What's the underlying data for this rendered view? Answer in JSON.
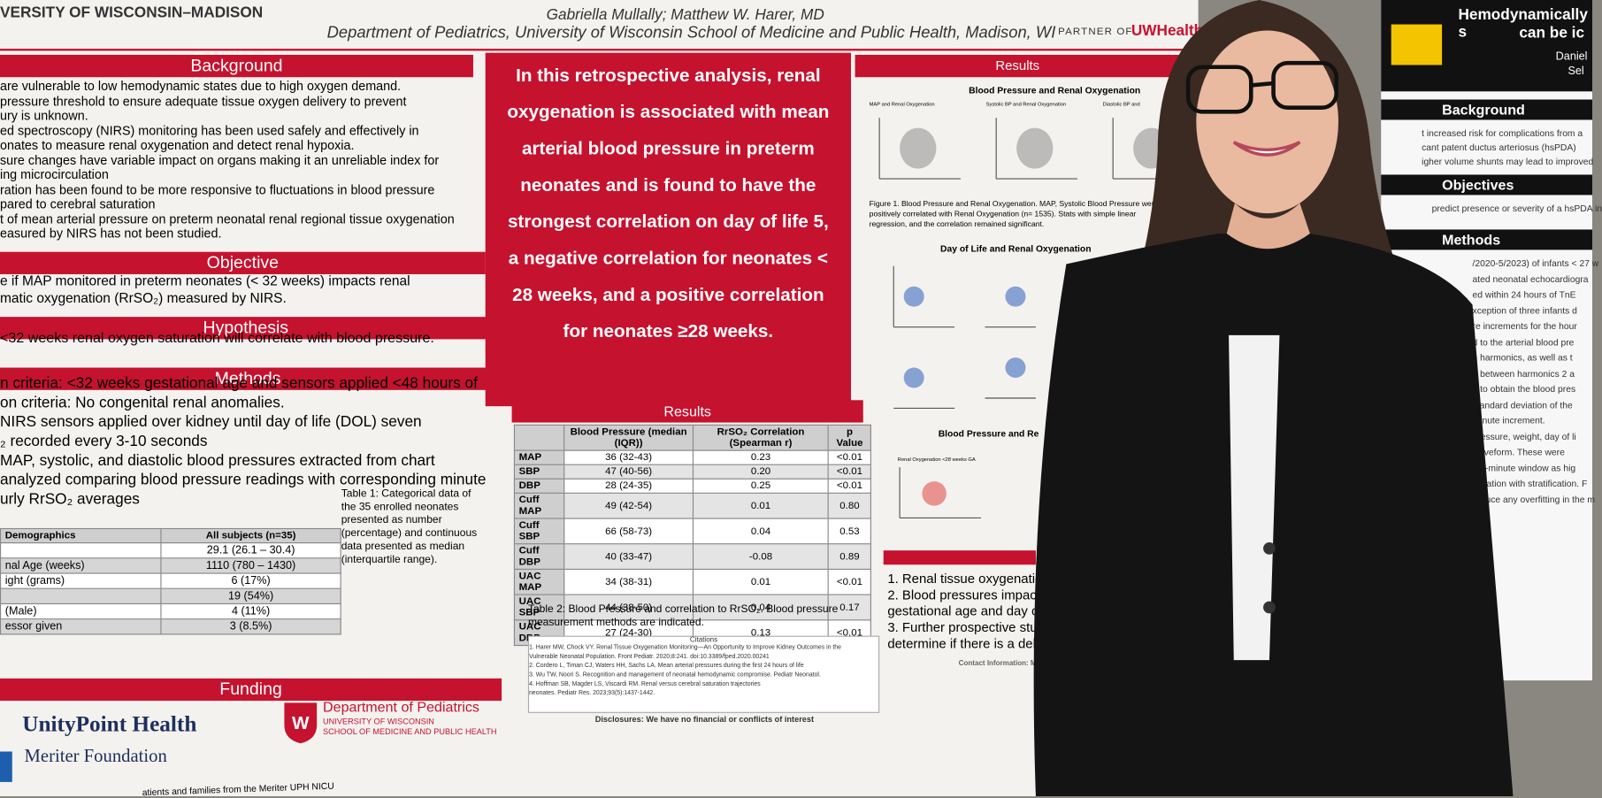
{
  "header": {
    "university": "VERSITY OF WISCONSIN–MADISON",
    "authors": "Gabriella Mullally; Matthew W. Harer, MD",
    "department": "Department of Pediatrics, University of Wisconsin School of Medicine and Public Health, Madison, WI",
    "partner": "PARTNER OF",
    "partner_logo": "UWHealth"
  },
  "background": {
    "heading": "Background",
    "lines": [
      "are vulnerable to low hemodynamic states due to high oxygen demand.",
      "pressure threshold to ensure adequate tissue oxygen delivery to prevent",
      "ury is unknown.",
      "ed spectroscopy (NIRS) monitoring has been used safely and effectively in",
      "onates to measure renal oxygenation and detect renal hypoxia.",
      "sure changes have variable impact on organs making it an unreliable index for",
      "ing microcirculation",
      "ration has been found to be more responsive to fluctuations in blood pressure",
      "pared to cerebral saturation",
      "t of mean arterial pressure on preterm neonatal renal regional tissue oxygenation",
      "easured by NIRS has not been studied."
    ]
  },
  "objective": {
    "heading": "Objective",
    "lines": [
      "e if MAP monitored in preterm neonates (< 32 weeks) impacts renal",
      "matic oxygenation (RrSO₂) measured by NIRS."
    ]
  },
  "hypothesis": {
    "heading": "Hypothesis",
    "lines": [
      "<32 weeks renal oxygen saturation will correlate with blood pressure."
    ]
  },
  "methods": {
    "heading": "Methods",
    "lines": [
      "n criteria: <32 weeks gestational age and sensors applied <48 hours of",
      "on criteria: No congenital renal anomalies.",
      "NIRS sensors applied over kidney until day of life (DOL) seven",
      "₂ recorded every 3-10 seconds",
      "MAP, systolic, and diastolic blood pressures extracted from chart",
      "analyzed comparing blood pressure readings with corresponding minute",
      "urly RrSO₂ averages"
    ]
  },
  "table1": {
    "columns": [
      "Demographics",
      "All subjects (n=35)"
    ],
    "rows": [
      {
        "value": "29.1 (26.1 – 30.4)"
      },
      {
        "label": "nal Age (weeks)",
        "value": "1110 (780 – 1430)"
      },
      {
        "label": "ight (grams)",
        "value": "6 (17%)"
      },
      {
        "value": "19 (54%)"
      },
      {
        "label": "(Male)",
        "value": "4 (11%)"
      },
      {
        "label": "essor given",
        "value": "3 (8.5%)"
      }
    ],
    "caption": "Table 1: Categorical data of the 35 enrolled neonates presented as number (percentage) and continuous data presented as median (interquartile range)."
  },
  "funding": {
    "heading": "Funding",
    "sponsor": "UnityPoint Health",
    "sponsor_sub": "Meriter Foundation",
    "dept": "Department of Pediatrics",
    "dept_sub1": "UNIVERSITY OF WISCONSIN",
    "dept_sub2": "SCHOOL OF MEDICINE AND PUBLIC HEALTH",
    "thanks": "atients and families from the Meriter UPH NICU"
  },
  "highlight": "In this retrospective analysis, renal oxygenation is associated with mean arterial blood pressure in preterm neonates and is found to have the strongest correlation on day of life 5, a negative correlation for neonates < 28 weeks, and a positive correlation for neonates ≥28 weeks.",
  "results_table": {
    "heading": "Results",
    "columns": [
      "Blood Pressure (median (IQR))",
      "RrSO₂ Correlation (Spearman r)",
      "p Value"
    ],
    "rows": [
      [
        "MAP",
        "36 (32-43)",
        "0.23",
        "<0.01"
      ],
      [
        "SBP",
        "47 (40-56)",
        "0.20",
        "<0.01"
      ],
      [
        "DBP",
        "28 (24-35)",
        "0.25",
        "<0.01"
      ],
      [
        "Cuff MAP",
        "49 (42-54)",
        "0.01",
        "0.80"
      ],
      [
        "Cuff SBP",
        "66 (58-73)",
        "0.04",
        "0.53"
      ],
      [
        "Cuff DBP",
        "40 (33-47)",
        "-0.08",
        "0.89"
      ],
      [
        "UAC MAP",
        "34 (38-31)",
        "0.01",
        "<0.01"
      ],
      [
        "UAC SBP",
        "44 (38-50)",
        "0.04",
        "0.17"
      ],
      [
        "UAC DBP",
        "27 (24-30)",
        "0.13",
        "<0.01"
      ]
    ],
    "caption": "Table 2: Blood Pressure and correlation to RrSO₂. Blood pressure measurement methods are indicated."
  },
  "citations": {
    "heading": "Citations",
    "lines": [
      "1. Harer MW, Chock VY. Renal Tissue Oxygenation Monitoring—An Opportunity to Improve Kidney Outcomes in the",
      "Vulnerable Neonatal Population. Front Pediatr. 2020;8:241. doi:10.3389/fped.2020.00241",
      "2. Cordero L, Timan CJ, Waters HH, Sachs LA. Mean arterial pressures during the first 24 hours of life",
      "3. Wu TW, Noori S. Recognition and management of neonatal hemodynamic compromise. Pediatr Neonatol.",
      "4. Hoffman SB, Magder LS, Viscardi RM. Renal versus cerebral saturation trajectories",
      "neonates. Pediatr Res. 2023;93(5):1437-1442."
    ],
    "disclosure": "Disclosures: We have no financial or conflicts of interest"
  },
  "results_right": {
    "heading": "Results",
    "fig1_title": "Blood Pressure and Renal Oxygenation",
    "fig1_panels": [
      "MAP and Renal Oxygenation",
      "Systolic BP and Renal Oxygenation",
      "Diastolic BP and"
    ],
    "fig1_caption": "Figure 1. Blood Pressure and Renal Oxygenation. MAP, Systolic Blood Pressure were all positively correlated with Renal Oxygenation (n= 1535). Stats with simple linear regression, and the correlation remained significant.",
    "fig2_title": "Day of Life and Renal Oxygenation",
    "fig3_title": "Blood Pressure and Re",
    "fig3_panel": "Renal Oxygenation <28 weeks GA"
  },
  "conclusions": {
    "lines": [
      "1. Renal tissue oxygenation in",
      "2. Blood pressures impact",
      "gestational age and day of",
      "3. Further prospective studie",
      "determine if there is a dela"
    ],
    "contact": "Contact Information: Matt"
  },
  "poster2": {
    "title1": "Hemodynamically s",
    "title2": "can be ic",
    "names": "Daniel",
    "sub": "Sel",
    "background": "Background",
    "bg_lines": [
      "t increased risk for complications from a",
      "cant patent ductus arteriosus (hsPDA)",
      "igher volume shunts may lead to improved"
    ],
    "objectives": "Objectives",
    "obj_lines": [
      "predict presence or severity of a hsPDA in"
    ],
    "methods": "Methods",
    "m_lines": [
      "/2020-5/2023) of infants < 27 w",
      "ated neonatal echocardiogra",
      "ed within 24 hours of TnE",
      "xception of three infants d",
      "re increments for the hour",
      "d to the arterial blood pre",
      "h harmonics, as well as t",
      "e between harmonics 2 a",
      "d to obtain the blood pres",
      "standard deviation of the",
      "minute increment.",
      "pressure, weight, day of li",
      "waveform. These were",
      "h 5-minute window as hig",
      "alidation with stratification. F",
      "reduce any overfitting in the m"
    ]
  }
}
